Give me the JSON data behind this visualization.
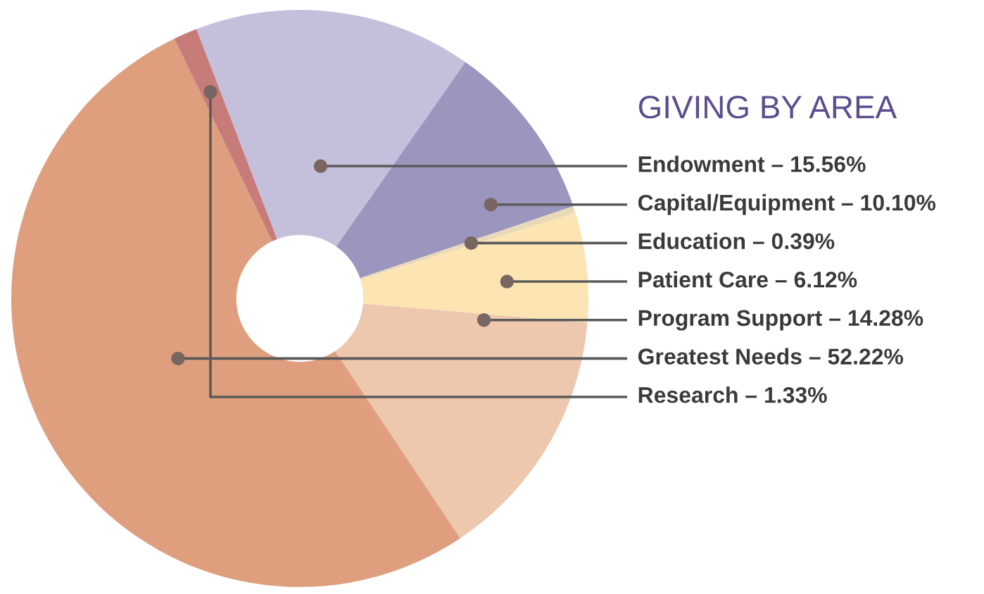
{
  "chart_data": {
    "type": "donut",
    "title": "GIVING BY AREA",
    "categories": [
      "Endowment – 15.56%",
      "Capital/Equipment – 10.10%",
      "Education – 0.39%",
      "Patient Care – 6.12%",
      "Program Support – 14.28%",
      "Greatest Needs – 52.22%",
      "Research – 1.33%"
    ],
    "values": [
      15.56,
      10.1,
      0.39,
      6.12,
      14.28,
      52.22,
      1.33
    ],
    "colors": [
      "#c4c0dc",
      "#9a96be",
      "#e8d9b8",
      "#fde4b3",
      "#edc7ae",
      "#df9f7e",
      "#c87c7a"
    ]
  }
}
